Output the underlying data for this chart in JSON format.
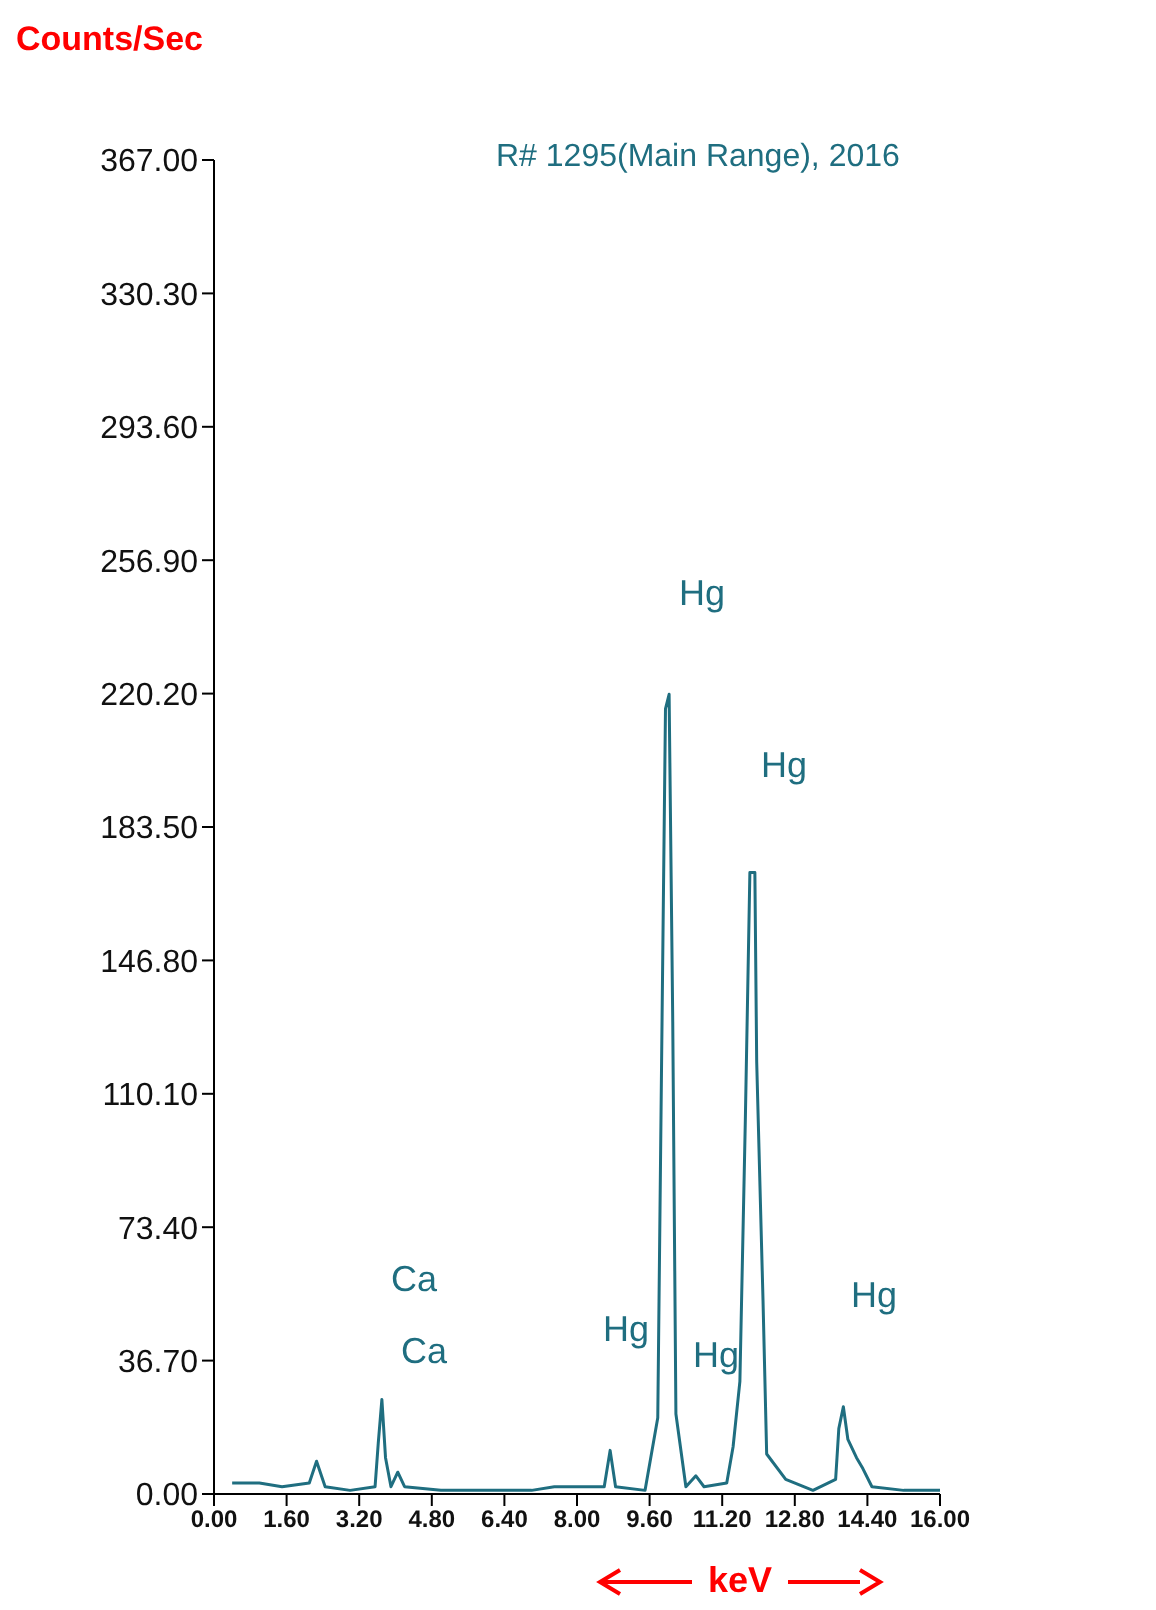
{
  "chart_data": {
    "type": "line",
    "ylabel": "Counts/Sec",
    "subtitle": "R# 1295(Main Range), 2016",
    "xlabel": "keV",
    "color": "#1f6e80",
    "x": [
      0.4,
      1.0,
      1.5,
      2.1,
      2.26,
      2.45,
      3.0,
      3.55,
      3.62,
      3.7,
      3.78,
      3.9,
      4.05,
      4.2,
      5.0,
      6.0,
      7.0,
      7.5,
      8.6,
      8.73,
      8.85,
      9.5,
      9.78,
      9.86,
      9.95,
      10.03,
      10.11,
      10.18,
      10.4,
      10.62,
      10.8,
      11.3,
      11.44,
      11.59,
      11.71,
      11.81,
      11.92,
      11.96,
      12.1,
      12.18,
      12.6,
      13.2,
      13.7,
      13.77,
      13.87,
      13.97,
      14.16,
      14.3,
      14.5,
      15.2,
      16.0
    ],
    "values": [
      3,
      3,
      2,
      3,
      9,
      2,
      1,
      2,
      14,
      26,
      10,
      2,
      6,
      2,
      1,
      1,
      1,
      2,
      2,
      12,
      2,
      1,
      21,
      114,
      216,
      220,
      130,
      22,
      2,
      5,
      2,
      3,
      13,
      31,
      103,
      171,
      171,
      119,
      53,
      11,
      4,
      1,
      4,
      18,
      24,
      15,
      10,
      7,
      2,
      1,
      1
    ],
    "xlim": [
      0,
      16
    ],
    "xticks": [
      {
        "value": 0,
        "label": "0.00"
      },
      {
        "value": 1.6,
        "label": "1.60"
      },
      {
        "value": 3.2,
        "label": "3.20"
      },
      {
        "value": 4.8,
        "label": "4.80"
      },
      {
        "value": 6.4,
        "label": "6.40"
      },
      {
        "value": 8,
        "label": "8.00"
      },
      {
        "value": 9.6,
        "label": "9.60"
      },
      {
        "value": 11.2,
        "label": "11.20"
      },
      {
        "value": 12.8,
        "label": "12.80"
      },
      {
        "value": 14.4,
        "label": "14.40"
      },
      {
        "value": 16,
        "label": "16.00"
      }
    ],
    "ylim": [
      0,
      367
    ],
    "yticks": [
      {
        "value": 0,
        "label": "0.00"
      },
      {
        "value": 36.7,
        "label": "36.70"
      },
      {
        "value": 73.4,
        "label": "73.40"
      },
      {
        "value": 110.1,
        "label": "110.10"
      },
      {
        "value": 146.8,
        "label": "146.80"
      },
      {
        "value": 183.5,
        "label": "183.50"
      },
      {
        "value": 220.2,
        "label": "220.20"
      },
      {
        "value": 256.9,
        "label": "256.90"
      },
      {
        "value": 293.6,
        "label": "293.60"
      },
      {
        "value": 330.3,
        "label": "330.30"
      },
      {
        "value": 367,
        "label": "367.00"
      }
    ],
    "grid": false,
    "annotations": [
      "Ca",
      "Ca",
      "Hg",
      "Hg",
      "Hg",
      "Hg",
      "Hg"
    ]
  }
}
